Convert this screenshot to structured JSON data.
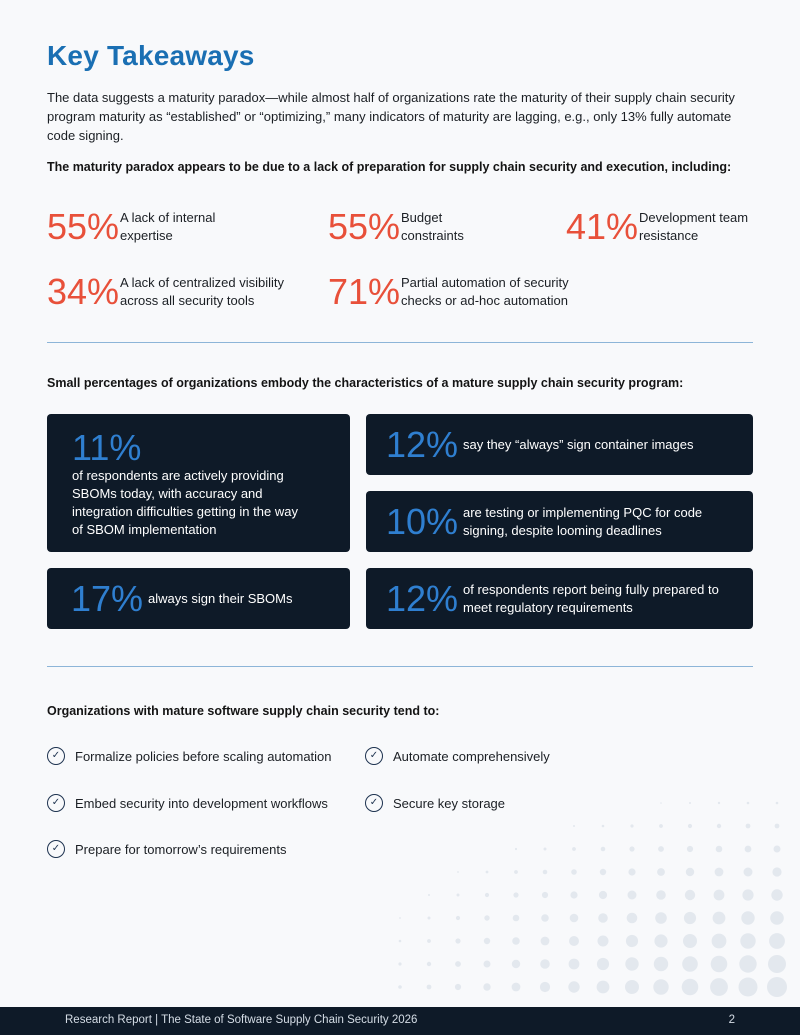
{
  "title": "Key Takeaways",
  "intro": "The data suggests a maturity paradox—while almost half of organizations rate the maturity of their supply chain security program maturity as “established” or “optimizing,” many indicators of maturity are lagging, e.g., only 13% fully automate code signing.",
  "section1": {
    "heading": "The maturity paradox appears to be due to a lack of preparation for supply chain security and execution, including:",
    "stats": [
      {
        "pct": "55%",
        "text": "A lack of internal expertise"
      },
      {
        "pct": "55%",
        "text": "Budget constraints"
      },
      {
        "pct": "41%",
        "text": "Development team resistance"
      },
      {
        "pct": "34%",
        "text": "A lack of centralized visibility across all security tools"
      },
      {
        "pct": "71%",
        "text": "Partial automation of security checks or ad-hoc automation"
      }
    ]
  },
  "section2": {
    "heading": "Small percentages of organizations embody the characteristics of a mature supply chain security program:",
    "cards": [
      {
        "pct": "11%",
        "text": "of respondents are actively providing SBOMs today, with accuracy and integration difficulties getting in the way of SBOM implementation"
      },
      {
        "pct": "12%",
        "text": "say they “always” sign container images"
      },
      {
        "pct": "10%",
        "text": "are testing or implementing PQC for code signing, despite looming deadlines"
      },
      {
        "pct": "17%",
        "text": "always sign their SBOMs"
      },
      {
        "pct": "12%",
        "text": "of respondents report being fully prepared to meet regulatory requirements"
      }
    ]
  },
  "section3": {
    "heading": "Organizations with mature software supply chain security tend to:",
    "items": [
      "Formalize policies before scaling automation",
      "Automate comprehensively",
      "Embed security into development workflows",
      "Secure key storage",
      "Prepare for tomorrow’s requirements"
    ],
    "check_icon": "check-circle-icon"
  },
  "footer": {
    "text": "Research Report | The State of Software Supply Chain Security 2026",
    "page": "2"
  },
  "colors": {
    "title": "#1a6fb3",
    "stat_pct": "#e8503a",
    "card_bg": "#0e1a28",
    "card_pct": "#2f7fd0",
    "rule": "#8db5d8"
  }
}
